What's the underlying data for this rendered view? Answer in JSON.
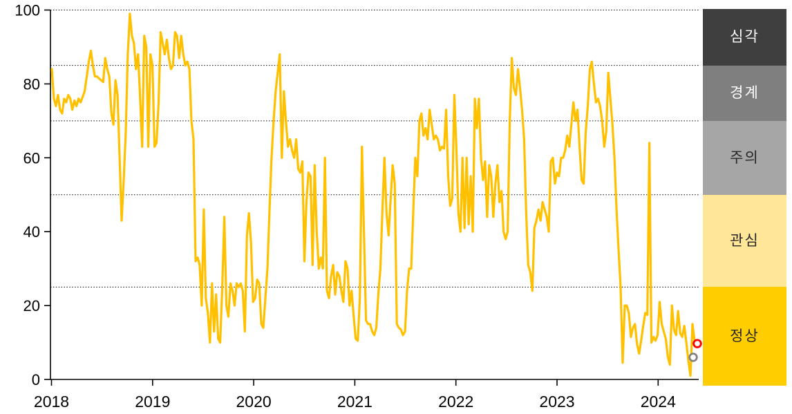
{
  "chart_data": {
    "type": "line",
    "title": "",
    "x_axis": {
      "tick_labels": [
        "2018",
        "2019",
        "2020",
        "2021",
        "2022",
        "2023",
        "2024"
      ]
    },
    "y_axis": {
      "tick_labels": [
        "0",
        "20",
        "40",
        "60",
        "80",
        "100"
      ],
      "tick_values": [
        0,
        20,
        40,
        60,
        80,
        100
      ],
      "range": [
        0,
        100
      ],
      "dotted_gridlines": [
        100,
        85,
        70,
        50,
        25
      ]
    },
    "series": [
      {
        "name": "risk-index",
        "color": "#FFC000",
        "frequency": "weekly",
        "period_start": "2018",
        "period_end": "2024",
        "values": [
          84,
          76,
          74,
          77,
          73,
          72,
          76,
          75,
          77,
          76,
          73,
          75.5,
          74,
          76,
          75,
          76.5,
          78,
          82,
          86,
          89,
          85,
          82,
          82,
          81.5,
          81,
          80.5,
          87,
          84,
          82,
          72,
          69,
          81,
          77,
          60,
          43,
          54,
          67,
          88,
          99,
          93,
          91,
          84,
          88,
          76,
          63,
          93,
          90,
          63,
          88,
          85,
          63,
          64,
          75,
          94,
          91,
          88,
          92,
          87,
          84,
          85,
          94,
          93,
          87,
          93,
          88,
          85,
          86,
          84,
          70,
          65,
          32,
          33,
          31,
          20,
          46,
          22,
          18,
          10,
          26,
          13,
          23,
          11,
          10,
          25,
          44,
          20,
          17,
          26,
          24,
          20,
          26,
          25,
          26,
          24,
          13,
          39,
          45,
          37,
          21,
          22,
          27,
          26,
          15,
          14,
          22,
          30,
          46,
          60,
          70,
          78,
          83,
          88,
          60,
          78,
          70,
          63,
          65,
          62,
          60,
          65,
          57,
          56,
          59,
          32,
          48,
          56,
          55,
          31,
          58,
          40,
          30,
          33,
          30,
          60,
          24,
          22,
          28,
          31,
          23,
          29,
          28,
          24,
          21,
          32,
          30,
          20,
          24,
          17,
          11,
          10.5,
          22,
          63,
          40,
          16,
          15,
          15,
          13,
          12,
          14,
          23,
          30,
          46,
          60,
          45,
          39,
          49,
          58,
          53,
          15,
          14,
          13.5,
          12,
          13,
          24,
          30,
          30,
          45,
          60,
          55,
          70,
          72,
          66,
          68,
          65,
          73,
          69,
          65,
          66,
          65,
          62,
          63,
          62.5,
          73,
          55,
          47,
          49,
          77,
          63,
          45,
          40,
          60,
          41,
          60,
          42,
          55,
          40,
          76,
          68,
          76,
          60,
          54,
          59,
          44,
          58,
          55,
          44,
          53,
          58,
          48,
          51,
          40,
          38,
          40,
          70,
          87,
          79,
          77,
          84,
          79,
          73,
          65,
          45,
          31,
          29,
          24,
          41,
          43,
          46,
          43,
          48,
          46,
          44,
          40,
          59,
          60,
          53,
          56,
          55,
          60,
          60,
          62,
          66,
          63,
          69,
          75,
          70,
          73,
          63,
          54,
          53,
          67,
          74,
          84,
          86,
          80,
          75,
          76,
          74,
          70,
          63,
          67,
          83,
          76,
          69,
          60,
          46,
          35,
          25,
          4.5,
          20,
          20,
          18,
          11.5,
          14,
          15,
          9.5,
          7,
          10.5,
          14.5,
          18,
          17.5,
          64,
          10,
          11.5,
          10.5,
          12,
          21,
          15,
          13,
          11,
          6,
          4,
          20,
          13.5,
          12,
          18.5,
          12.5,
          11.5,
          14.5,
          10,
          5,
          1,
          15,
          10.5
        ]
      }
    ],
    "markers": [
      {
        "name": "previous-point",
        "color": "#808080",
        "value": 6
      },
      {
        "name": "latest-point",
        "color": "#FF0000",
        "value": 9.7
      }
    ],
    "zones": [
      {
        "label": "심각",
        "range": [
          85,
          100
        ],
        "color": "#3F3F3F",
        "text_color": "#FFFFFF"
      },
      {
        "label": "경계",
        "range": [
          70,
          85
        ],
        "color": "#7F7F7F",
        "text_color": "#FFFFFF"
      },
      {
        "label": "주의",
        "range": [
          50,
          70
        ],
        "color": "#A6A6A6",
        "text_color": "#262626"
      },
      {
        "label": "관심",
        "range": [
          25,
          50
        ],
        "color": "#FFE699",
        "text_color": "#262626"
      },
      {
        "label": "정상",
        "range": [
          0,
          25
        ],
        "color": "#FFCD00",
        "text_color": "#262626"
      }
    ],
    "legend_position": "right"
  }
}
